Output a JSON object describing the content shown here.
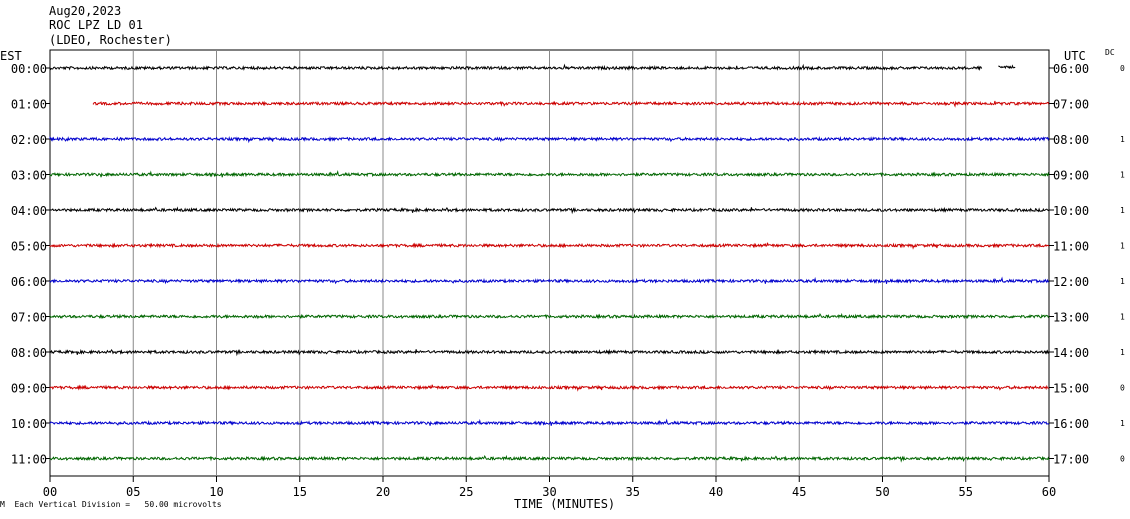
{
  "header": {
    "date": "Aug20,2023",
    "station": "ROC LPZ LD 01",
    "network": "(LDEO, Rochester)"
  },
  "left_axis_label": "EST",
  "right_axis_label": "UTC",
  "dc_label": "DC",
  "footnote": "Each Vertical Division =   50.00 microvolts",
  "footnote_mark": "M",
  "chart_data": {
    "type": "line",
    "xlabel": "TIME (MINUTES)",
    "xlim": [
      0,
      60
    ],
    "x_ticks": [
      "00",
      "05",
      "10",
      "15",
      "20",
      "25",
      "30",
      "35",
      "40",
      "45",
      "50",
      "55",
      "60"
    ],
    "trace_colors": [
      "#000000",
      "#cc0000",
      "#0000cc",
      "#006600"
    ],
    "rows": [
      {
        "est": "00:00",
        "utc": "06:00",
        "dc": "0",
        "start_min": 0,
        "end_min": 56,
        "extra_segment": [
          57,
          58
        ]
      },
      {
        "est": "01:00",
        "utc": "07:00",
        "dc": "",
        "start_min": 2.6,
        "end_min": 60
      },
      {
        "est": "02:00",
        "utc": "08:00",
        "dc": "1",
        "start_min": 0,
        "end_min": 60
      },
      {
        "est": "03:00",
        "utc": "09:00",
        "dc": "1",
        "start_min": 0,
        "end_min": 60
      },
      {
        "est": "04:00",
        "utc": "10:00",
        "dc": "1",
        "start_min": 0,
        "end_min": 60
      },
      {
        "est": "05:00",
        "utc": "11:00",
        "dc": "1",
        "start_min": 0,
        "end_min": 60
      },
      {
        "est": "06:00",
        "utc": "12:00",
        "dc": "1",
        "start_min": 0,
        "end_min": 60
      },
      {
        "est": "07:00",
        "utc": "13:00",
        "dc": "1",
        "start_min": 0,
        "end_min": 60
      },
      {
        "est": "08:00",
        "utc": "14:00",
        "dc": "1",
        "start_min": 0,
        "end_min": 60
      },
      {
        "est": "09:00",
        "utc": "15:00",
        "dc": "0",
        "start_min": 0,
        "end_min": 60
      },
      {
        "est": "10:00",
        "utc": "16:00",
        "dc": "1",
        "start_min": 0,
        "end_min": 60
      },
      {
        "est": "11:00",
        "utc": "17:00",
        "dc": "0",
        "start_min": 0,
        "end_min": 60
      }
    ]
  }
}
